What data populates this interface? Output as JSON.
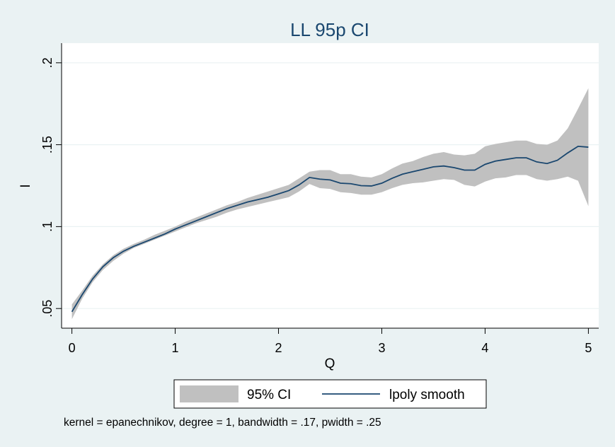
{
  "chart_data": {
    "type": "line",
    "title": "LL 95p CI",
    "xlabel": "Q",
    "ylabel": "I",
    "xlim": [
      -0.1,
      5.1
    ],
    "ylim": [
      0.038,
      0.212
    ],
    "xticks": [
      0,
      1,
      2,
      3,
      4,
      5
    ],
    "xtick_labels": [
      "0",
      "1",
      "2",
      "3",
      "4",
      "5"
    ],
    "yticks": [
      0.05,
      0.1,
      0.15,
      0.2
    ],
    "ytick_labels": [
      ".05",
      ".1",
      ".15",
      ".2"
    ],
    "grid": true,
    "legend_position": "bottom",
    "colors": {
      "line": "#1a476f",
      "band": "#c0c0c0",
      "plot_bg": "#ffffff",
      "page_bg": "#eaf2f3",
      "grid": "#eaf2f3"
    },
    "series": [
      {
        "name": "95% CI",
        "kind": "band",
        "x": [
          0,
          0.1,
          0.2,
          0.3,
          0.4,
          0.5,
          0.6,
          0.7,
          0.8,
          0.9,
          1.0,
          1.1,
          1.2,
          1.3,
          1.4,
          1.5,
          1.6,
          1.7,
          1.8,
          1.9,
          2.0,
          2.1,
          2.2,
          2.3,
          2.4,
          2.5,
          2.6,
          2.7,
          2.8,
          2.9,
          3.0,
          3.1,
          3.2,
          3.3,
          3.4,
          3.5,
          3.6,
          3.7,
          3.8,
          3.9,
          4.0,
          4.1,
          4.2,
          4.3,
          4.4,
          4.5,
          4.6,
          4.7,
          4.8,
          4.9,
          5.0
        ],
        "lower": [
          0.0435,
          0.056,
          0.066,
          0.0735,
          0.079,
          0.0835,
          0.087,
          0.0895,
          0.092,
          0.0945,
          0.097,
          0.0995,
          0.102,
          0.104,
          0.106,
          0.1085,
          0.1105,
          0.112,
          0.1135,
          0.115,
          0.1165,
          0.118,
          0.1215,
          0.126,
          0.1235,
          0.123,
          0.121,
          0.1205,
          0.1195,
          0.1195,
          0.121,
          0.1235,
          0.1255,
          0.1265,
          0.127,
          0.128,
          0.129,
          0.1285,
          0.1255,
          0.1245,
          0.1275,
          0.1295,
          0.13,
          0.1315,
          0.1315,
          0.129,
          0.128,
          0.129,
          0.1305,
          0.128,
          0.1125
        ],
        "upper": [
          0.0525,
          0.061,
          0.07,
          0.077,
          0.0825,
          0.0865,
          0.0895,
          0.092,
          0.095,
          0.0975,
          0.1,
          0.103,
          0.1055,
          0.108,
          0.1105,
          0.113,
          0.115,
          0.1175,
          0.1195,
          0.1215,
          0.1235,
          0.1255,
          0.1295,
          0.1335,
          0.1345,
          0.1345,
          0.132,
          0.132,
          0.1305,
          0.13,
          0.132,
          0.1355,
          0.1385,
          0.14,
          0.1425,
          0.1445,
          0.1455,
          0.144,
          0.1435,
          0.1445,
          0.149,
          0.1505,
          0.1515,
          0.1525,
          0.1525,
          0.1505,
          0.15,
          0.1525,
          0.16,
          0.172,
          0.1845
        ]
      },
      {
        "name": "lpoly smooth",
        "kind": "line",
        "x": [
          0,
          0.1,
          0.2,
          0.3,
          0.4,
          0.5,
          0.6,
          0.7,
          0.8,
          0.9,
          1.0,
          1.1,
          1.2,
          1.3,
          1.4,
          1.5,
          1.6,
          1.7,
          1.8,
          1.9,
          2.0,
          2.1,
          2.2,
          2.3,
          2.4,
          2.5,
          2.6,
          2.7,
          2.8,
          2.9,
          3.0,
          3.1,
          3.2,
          3.3,
          3.4,
          3.5,
          3.6,
          3.7,
          3.8,
          3.9,
          4.0,
          4.1,
          4.2,
          4.3,
          4.4,
          4.5,
          4.6,
          4.7,
          4.8,
          4.9,
          5.0
        ],
        "values": [
          0.048,
          0.0585,
          0.068,
          0.0755,
          0.081,
          0.085,
          0.088,
          0.0905,
          0.093,
          0.0955,
          0.0985,
          0.101,
          0.1035,
          0.106,
          0.1085,
          0.111,
          0.113,
          0.115,
          0.1165,
          0.118,
          0.12,
          0.122,
          0.1255,
          0.13,
          0.129,
          0.1285,
          0.1265,
          0.1262,
          0.125,
          0.1248,
          0.1265,
          0.1295,
          0.132,
          0.1335,
          0.135,
          0.1365,
          0.137,
          0.136,
          0.1345,
          0.1345,
          0.138,
          0.14,
          0.141,
          0.142,
          0.142,
          0.1395,
          0.1385,
          0.1405,
          0.145,
          0.149,
          0.1485
        ]
      }
    ],
    "note": "kernel = epanechnikov, degree = 1, bandwidth = .17, pwidth = .25"
  }
}
